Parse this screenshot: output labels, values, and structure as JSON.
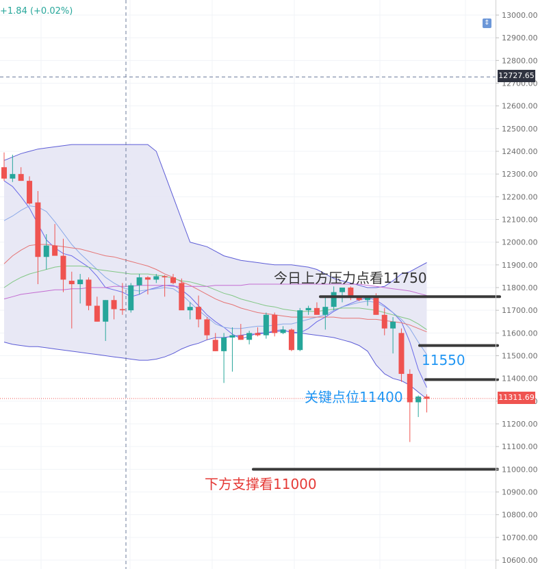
{
  "header": {
    "change_text": "+1.84 (+0.02%)"
  },
  "colors": {
    "up": "#26a69a",
    "down": "#ef5350",
    "band_fill": "#e6e6f4",
    "band_line": "#5b5bd6",
    "ma_mid": "#e57373",
    "ma_green": "#81c784",
    "ma_purple": "#c36bd1",
    "ma_blue": "#8aa8e8",
    "ma_fast": "#6a6ae8",
    "support_line": "#3a3a3a",
    "last_price_tag": "#ef5350",
    "crosshair_tag": "#2f3340"
  },
  "annotations": {
    "resistance": "今日上方压力点看11750",
    "level_11550": "11550",
    "key_level": "关键点位11400",
    "support": "下方支撑看11000"
  },
  "price_tags": {
    "crosshair": "12727.65",
    "last": "11311.69"
  },
  "chart_data": {
    "type": "candlestick",
    "y_axis": {
      "min": 10560,
      "max": 13060,
      "ticks": [
        13000,
        12900,
        12800,
        12700,
        12600,
        12500,
        12400,
        12300,
        12200,
        12100,
        12000,
        11900,
        11800,
        11700,
        11600,
        11500,
        11400,
        11300,
        11200,
        11100,
        11000,
        10900,
        10800,
        10700,
        10600
      ],
      "tick_labels": [
        "13000.00",
        "12900.00",
        "12800.00",
        "12700.00",
        "12600.00",
        "12500.00",
        "12400.00",
        "12300.00",
        "12200.00",
        "12100.00",
        "12000.00",
        "11900.00",
        "11800.00",
        "11700.00",
        "11600.00",
        "11500.00",
        "11400.00",
        "11300.00",
        "11200.00",
        "11100.00",
        "11000.00",
        "10900.00",
        "10800.00",
        "10700.00",
        "10600.00"
      ]
    },
    "candles": [
      [
        12330,
        12395,
        12270,
        12280
      ],
      [
        12280,
        12385,
        12265,
        12300
      ],
      [
        12300,
        12330,
        12270,
        12270
      ],
      [
        12270,
        12290,
        12165,
        12170
      ],
      [
        12175,
        12225,
        11815,
        11935
      ],
      [
        11935,
        12035,
        11880,
        11985
      ],
      [
        11985,
        12080,
        11950,
        11940
      ],
      [
        11940,
        12015,
        11780,
        11835
      ],
      [
        11830,
        11870,
        11620,
        11815
      ],
      [
        11815,
        11860,
        11730,
        11835
      ],
      [
        11835,
        11845,
        11700,
        11720
      ],
      [
        11720,
        11760,
        11650,
        11650
      ],
      [
        11650,
        11745,
        11565,
        11745
      ],
      [
        11745,
        11765,
        11660,
        11705
      ],
      [
        11705,
        11820,
        11680,
        11700
      ],
      [
        11700,
        11820,
        11690,
        11810
      ],
      [
        11810,
        11860,
        11770,
        11845
      ],
      [
        11845,
        11850,
        11770,
        11835
      ],
      [
        11835,
        11860,
        11820,
        11850
      ],
      [
        11850,
        11855,
        11760,
        11845
      ],
      [
        11845,
        11860,
        11815,
        11820
      ],
      [
        11820,
        11840,
        11705,
        11700
      ],
      [
        11700,
        11735,
        11660,
        11715
      ],
      [
        11715,
        11765,
        11625,
        11660
      ],
      [
        11660,
        11670,
        11570,
        11590
      ],
      [
        11570,
        11600,
        11520,
        11520
      ],
      [
        11520,
        11600,
        11380,
        11580
      ],
      [
        11580,
        11625,
        11430,
        11590
      ],
      [
        11590,
        11640,
        11570,
        11570
      ],
      [
        11570,
        11610,
        11550,
        11600
      ],
      [
        11600,
        11625,
        11585,
        11590
      ],
      [
        11590,
        11690,
        11575,
        11680
      ],
      [
        11680,
        11690,
        11585,
        11600
      ],
      [
        11600,
        11630,
        11595,
        11615
      ],
      [
        11615,
        11620,
        11520,
        11525
      ],
      [
        11525,
        11710,
        11520,
        11700
      ],
      [
        11700,
        11720,
        11680,
        11710
      ],
      [
        11710,
        11735,
        11680,
        11680
      ],
      [
        11680,
        11760,
        11615,
        11715
      ],
      [
        11715,
        11805,
        11700,
        11780
      ],
      [
        11780,
        11800,
        11735,
        11800
      ],
      [
        11800,
        11805,
        11745,
        11760
      ],
      [
        11760,
        11765,
        11740,
        11745
      ],
      [
        11745,
        11765,
        11720,
        11755
      ],
      [
        11755,
        11775,
        11680,
        11680
      ],
      [
        11680,
        11710,
        11590,
        11620
      ],
      [
        11620,
        11670,
        11510,
        11650
      ],
      [
        11600,
        11620,
        11385,
        11420
      ],
      [
        11420,
        11440,
        11120,
        11295
      ],
      [
        11295,
        11325,
        11230,
        11320
      ],
      [
        11320,
        11330,
        11250,
        11310
      ]
    ],
    "series": [
      {
        "values": [
          12270,
          12245,
          12200,
          12150,
          12080,
          12010,
          11975,
          11950,
          11940,
          11915,
          11890,
          11850,
          11800,
          11790,
          11780,
          11760,
          11770,
          11790,
          11800,
          11810,
          11810,
          11790,
          11760,
          11720,
          11680,
          11650,
          11625,
          11595,
          11575,
          11585,
          11600,
          11600,
          11610,
          11615,
          11600,
          11600,
          11620,
          11650,
          11670,
          11695,
          11715,
          11730,
          11745,
          11755,
          11745,
          11720,
          11690,
          11650,
          11560,
          11440,
          11360
        ]
      },
      {
        "values": [
          12095,
          12115,
          12140,
          12160,
          12155,
          12135,
          12090,
          12040,
          11990,
          11950,
          11915,
          11880,
          11845,
          11820,
          11800,
          11790,
          11785,
          11790,
          11795,
          11800,
          11795,
          11770,
          11735,
          11700,
          11670,
          11640,
          11625,
          11620,
          11620,
          11625,
          11630,
          11630,
          11635,
          11640,
          11640,
          11650,
          11660,
          11670,
          11680,
          11700,
          11715,
          11725,
          11735,
          11740,
          11735,
          11715,
          11690,
          11660,
          11620,
          11560,
          11505
        ]
      },
      {
        "values": [
          11905,
          11940,
          11965,
          11985,
          11990,
          11990,
          11985,
          11980,
          11975,
          11970,
          11960,
          11950,
          11940,
          11935,
          11925,
          11915,
          11905,
          11895,
          11880,
          11860,
          11845,
          11825,
          11810,
          11790,
          11770,
          11750,
          11735,
          11725,
          11710,
          11700,
          11690,
          11685,
          11680,
          11675,
          11670,
          11670,
          11670,
          11670,
          11670,
          11670,
          11665,
          11665,
          11665,
          11660,
          11660,
          11655,
          11650,
          11645,
          11635,
          11620,
          11605
        ]
      },
      {
        "values": [
          11800,
          11825,
          11845,
          11860,
          11870,
          11880,
          11890,
          11895,
          11895,
          11895,
          11890,
          11880,
          11875,
          11870,
          11865,
          11860,
          11860,
          11860,
          11855,
          11850,
          11840,
          11830,
          11825,
          11815,
          11805,
          11790,
          11775,
          11765,
          11750,
          11740,
          11730,
          11720,
          11715,
          11705,
          11700,
          11695,
          11695,
          11695,
          11700,
          11705,
          11710,
          11710,
          11710,
          11705,
          11700,
          11690,
          11680,
          11670,
          11660,
          11640,
          11615
        ]
      },
      {
        "values": [
          11750,
          11760,
          11770,
          11775,
          11780,
          11785,
          11790,
          11790,
          11795,
          11795,
          11800,
          11800,
          11800,
          11805,
          11805,
          11805,
          11810,
          11810,
          11810,
          11810,
          11805,
          11805,
          11805,
          11805,
          11805,
          11810,
          11810,
          11810,
          11810,
          11815,
          11815,
          11815,
          11815,
          11815,
          11815,
          11815,
          11815,
          11815,
          11815,
          11815,
          11815,
          11815,
          11815,
          11810,
          11805,
          11800,
          11795,
          11790,
          11785,
          11775,
          11765
        ]
      }
    ],
    "band_upper": [
      12360,
      12375,
      12390,
      12400,
      12410,
      12415,
      12420,
      12425,
      12430,
      12430,
      12430,
      12430,
      12430,
      12430,
      12430,
      12430,
      12430,
      12430,
      12400,
      12300,
      12200,
      12100,
      12000,
      11990,
      11980,
      11960,
      11940,
      11930,
      11920,
      11915,
      11910,
      11905,
      11900,
      11900,
      11900,
      11895,
      11890,
      11880,
      11860,
      11840,
      11830,
      11820,
      11810,
      11800,
      11800,
      11805,
      11830,
      11860,
      11870,
      11890,
      11910
    ],
    "band_lower": [
      11560,
      11550,
      11545,
      11540,
      11540,
      11535,
      11530,
      11525,
      11520,
      11515,
      11510,
      11505,
      11500,
      11495,
      11490,
      11485,
      11480,
      11480,
      11485,
      11495,
      11510,
      11530,
      11545,
      11555,
      11570,
      11580,
      11580,
      11585,
      11590,
      11595,
      11595,
      11600,
      11605,
      11610,
      11605,
      11600,
      11595,
      11590,
      11585,
      11580,
      11570,
      11560,
      11545,
      11520,
      11460,
      11420,
      11400,
      11390,
      11370,
      11340,
      11310
    ],
    "horizontal_levels": [
      {
        "price": 11760,
        "label": "今日上方压力点看11750"
      },
      {
        "price": 11545,
        "label": "11550"
      },
      {
        "price": 11395,
        "label": "关键点位11400"
      },
      {
        "price": 11000,
        "label": "下方支撑看11000"
      }
    ],
    "crosshair": {
      "price": 12727.65
    },
    "last_price": 11311.69
  }
}
